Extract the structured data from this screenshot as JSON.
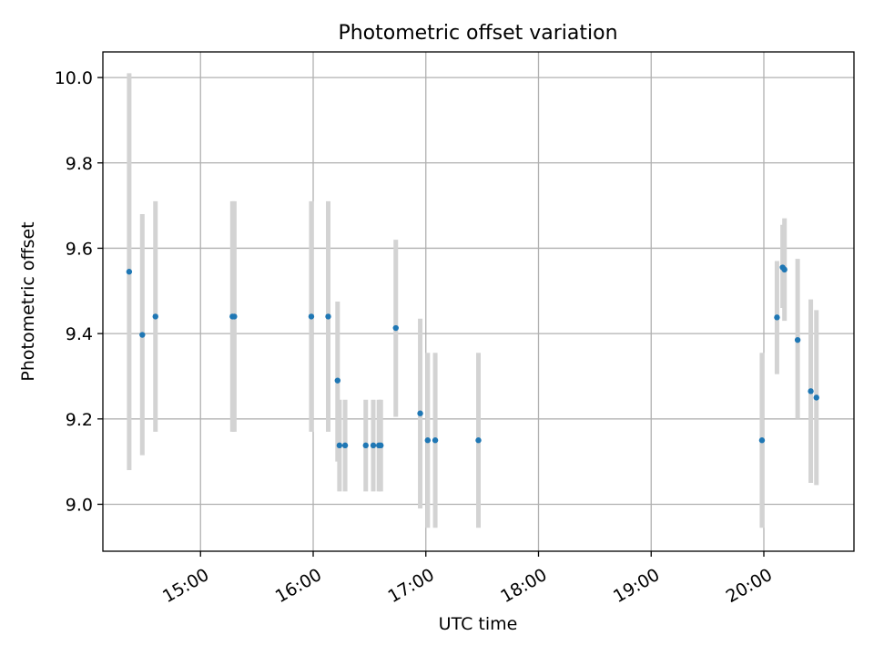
{
  "chart_data": {
    "type": "scatter",
    "title": "Photometric offset variation",
    "xlabel": "UTC time",
    "ylabel": "Photometric offset",
    "x_axis": {
      "type": "time",
      "range": [
        "14:08",
        "20:48"
      ],
      "ticks": [
        "15:00",
        "16:00",
        "17:00",
        "18:00",
        "19:00",
        "20:00"
      ]
    },
    "y_axis": {
      "range": [
        8.89,
        10.06
      ],
      "ticks": [
        9.0,
        9.2,
        9.4,
        9.6,
        9.8,
        10.0
      ],
      "tick_labels": [
        "9.0",
        "9.2",
        "9.4",
        "9.6",
        "9.8",
        "10.0"
      ]
    },
    "grid": true,
    "colors": {
      "marker": "#1f77b4",
      "errorbar": "#d3d3d3",
      "grid": "#b0b0b0"
    },
    "points": [
      {
        "x": "14:22",
        "y": 9.545,
        "err_low": 9.08,
        "err_high": 10.01
      },
      {
        "x": "14:29",
        "y": 9.397,
        "err_low": 9.115,
        "err_high": 9.68
      },
      {
        "x": "14:36",
        "y": 9.44,
        "err_low": 9.17,
        "err_high": 9.71
      },
      {
        "x": "15:17",
        "y": 9.44,
        "err_low": 9.17,
        "err_high": 9.71
      },
      {
        "x": "15:18",
        "y": 9.44,
        "err_low": 9.17,
        "err_high": 9.71
      },
      {
        "x": "15:59",
        "y": 9.44,
        "err_low": 9.17,
        "err_high": 9.71
      },
      {
        "x": "16:08",
        "y": 9.44,
        "err_low": 9.17,
        "err_high": 9.71
      },
      {
        "x": "16:13",
        "y": 9.29,
        "err_low": 9.1,
        "err_high": 9.475
      },
      {
        "x": "16:14",
        "y": 9.138,
        "err_low": 9.03,
        "err_high": 9.245
      },
      {
        "x": "16:17",
        "y": 9.138,
        "err_low": 9.03,
        "err_high": 9.245
      },
      {
        "x": "16:28",
        "y": 9.138,
        "err_low": 9.03,
        "err_high": 9.245
      },
      {
        "x": "16:32",
        "y": 9.138,
        "err_low": 9.03,
        "err_high": 9.245
      },
      {
        "x": "16:35",
        "y": 9.138,
        "err_low": 9.03,
        "err_high": 9.245
      },
      {
        "x": "16:36",
        "y": 9.138,
        "err_low": 9.03,
        "err_high": 9.245
      },
      {
        "x": "16:44",
        "y": 9.413,
        "err_low": 9.205,
        "err_high": 9.62
      },
      {
        "x": "16:57",
        "y": 9.213,
        "err_low": 8.99,
        "err_high": 9.435
      },
      {
        "x": "17:01",
        "y": 9.15,
        "err_low": 8.945,
        "err_high": 9.355
      },
      {
        "x": "17:05",
        "y": 9.15,
        "err_low": 8.945,
        "err_high": 9.355
      },
      {
        "x": "17:28",
        "y": 9.15,
        "err_low": 8.945,
        "err_high": 9.355
      },
      {
        "x": "19:59",
        "y": 9.15,
        "err_low": 8.945,
        "err_high": 9.355
      },
      {
        "x": "20:07",
        "y": 9.438,
        "err_low": 9.305,
        "err_high": 9.57
      },
      {
        "x": "20:10",
        "y": 9.555,
        "err_low": 9.46,
        "err_high": 9.655
      },
      {
        "x": "20:11",
        "y": 9.55,
        "err_low": 9.43,
        "err_high": 9.67
      },
      {
        "x": "20:18",
        "y": 9.385,
        "err_low": 9.2,
        "err_high": 9.575
      },
      {
        "x": "20:25",
        "y": 9.265,
        "err_low": 9.05,
        "err_high": 9.48
      },
      {
        "x": "20:28",
        "y": 9.25,
        "err_low": 9.045,
        "err_high": 9.455
      }
    ]
  }
}
